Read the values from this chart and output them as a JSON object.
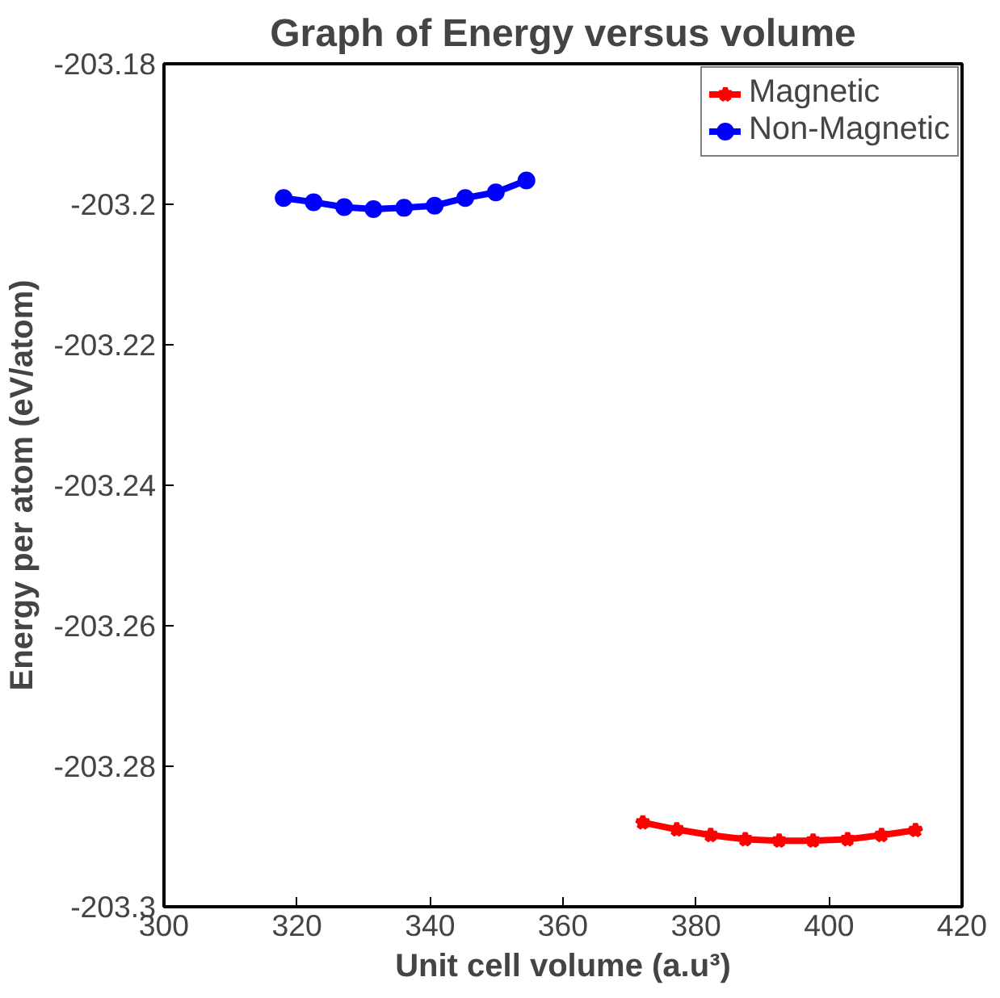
{
  "chart_data": {
    "type": "line",
    "title": "Graph of Energy versus volume",
    "xlabel": "Unit cell volume (a.u³)",
    "ylabel": "Energy per atom (eV/atom)",
    "xlim": [
      300,
      420
    ],
    "xticks": [
      300,
      320,
      340,
      360,
      380,
      400,
      420
    ],
    "ylim": [
      -203.3,
      -203.18
    ],
    "yticks": [
      -203.3,
      -203.28,
      -203.26,
      -203.24,
      -203.22,
      -203.2,
      -203.18
    ],
    "grid": false,
    "legend": "top right",
    "line_style": "solid",
    "series": [
      {
        "name": "Magnetic",
        "color": "#ff0000",
        "marker": "star",
        "x": [
          372,
          377.1,
          382.2,
          387.4,
          392.5,
          397.6,
          402.8,
          407.9,
          413
        ],
        "values": [
          -203.288,
          -203.289,
          -203.2898,
          -203.2904,
          -203.2906,
          -203.2906,
          -203.2904,
          -203.2898,
          -203.2891
        ]
      },
      {
        "name": "Non-Magnetic",
        "color": "#0000ff",
        "marker": "circle",
        "x": [
          318,
          322.5,
          327.1,
          331.5,
          336.1,
          340.7,
          345.3,
          349.9,
          354.5
        ],
        "values": [
          -203.1991,
          -203.1997,
          -203.2004,
          -203.2007,
          -203.2005,
          -203.2002,
          -203.1991,
          -203.1983,
          -203.1966
        ]
      }
    ]
  }
}
